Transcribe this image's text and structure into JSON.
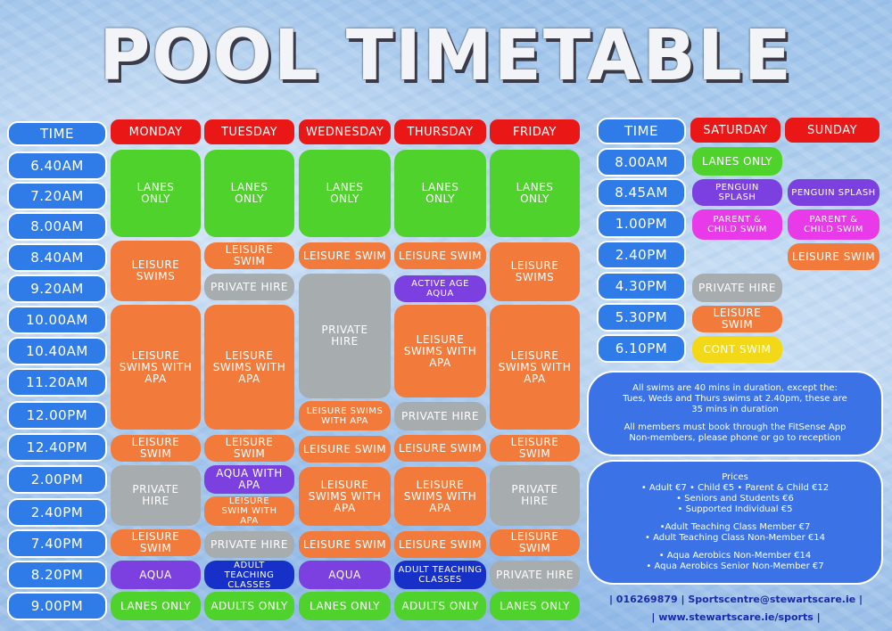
{
  "title": "POOL TIMETABLE",
  "weekday": {
    "time_header": "TIME",
    "days": [
      "MONDAY",
      "TUESDAY",
      "WEDNESDAY",
      "THURSDAY",
      "FRIDAY"
    ],
    "times": [
      "6.40AM",
      "7.20AM",
      "8.00AM",
      "8.40AM",
      "9.20AM",
      "10.00AM",
      "10.40AM",
      "11.20AM",
      "12.00PM",
      "12.40PM",
      "2.00PM",
      "2.40PM",
      "7.40PM",
      "8.20PM",
      "9.00PM"
    ],
    "monday": [
      "LANES ONLY",
      "LEISURE SWIMS",
      "LEISURE SWIMS WITH APA",
      "LEISURE SWIM",
      "PRIVATE HIRE",
      "LEISURE SWIM",
      "AQUA",
      "LANES ONLY"
    ],
    "tuesday": [
      "LANES ONLY",
      "LEISURE SWIM",
      "PRIVATE HIRE",
      "LEISURE SWIMS WITH APA",
      "LEISURE SWIM",
      "AQUA WITH APA",
      "LEISURE SWIM WITH APA",
      "PRIVATE HIRE",
      "ADULT TEACHING CLASSES",
      "ADULTS ONLY"
    ],
    "wednesday": [
      "LANES ONLY",
      "LEISURE SWIM",
      "PRIVATE HIRE",
      "LEISURE SWIMS WITH APA",
      "LEISURE SWIM",
      "LEISURE SWIMS WITH APA",
      "LEISURE SWIM",
      "AQUA",
      "LANES ONLY"
    ],
    "thursday": [
      "LANES ONLY",
      "LEISURE SWIM",
      "ACTIVE AGE AQUA",
      "LEISURE SWIMS WITH APA",
      "PRIVATE HIRE",
      "LEISURE SWIM",
      "LEISURE SWIMS WITH APA",
      "LEISURE SWIM",
      "ADULT TEACHING CLASSES",
      "ADULTS ONLY"
    ],
    "friday": [
      "LANES ONLY",
      "LEISURE SWIMS",
      "LEISURE SWIMS WITH APA",
      "LEISURE SWIM",
      "PRIVATE HIRE",
      "LEISURE SWIM",
      "PRIVATE HIRE",
      "LANES ONLY"
    ]
  },
  "weekend": {
    "time_header": "TIME",
    "days": [
      "SATURDAY",
      "SUNDAY"
    ],
    "times": [
      "8.00AM",
      "8.45AM",
      "1.00PM",
      "2.40PM",
      "4.30PM",
      "5.30PM",
      "6.10PM"
    ],
    "saturday": [
      "LANES ONLY",
      "PENGUIN SPLASH",
      "PARENT & CHILD SWIM",
      "PRIVATE HIRE",
      "LEISURE SWIM",
      "CONT SWIM"
    ],
    "sunday": [
      "PENGUIN SPLASH",
      "PARENT & CHILD SWIM",
      "LEISURE SWIM"
    ]
  },
  "info": {
    "lines": [
      "All swims are 40 mins in duration, except the:",
      "Tues, Weds and Thurs swims at 2.40pm, these are",
      "35 mins in duration",
      "All members must book through the FitSense App",
      "Non-members, please phone or go to reception"
    ]
  },
  "prices": {
    "heading": "Prices",
    "lines": [
      "• Adult €7 • Child €5 • Parent & Child €12",
      "• Seniors and Students €6",
      "• Supported Individual  €5",
      "•Adult Teaching Class Member €7",
      "• Adult Teaching Class Non-Member €14",
      "• Aqua Aerobics Non-Member €14",
      "• Aqua Aerobics Senior Non-Member €7"
    ]
  },
  "contact": {
    "line1": "| 016269879 | Sportscentre@stewartscare.ie |",
    "line2": "| www.stewartscare.ie/sports |"
  },
  "colors": {
    "lanes": "#4fd32c",
    "leisure": "#f27a3a",
    "private_hire": "#a7acae",
    "aqua": "#7c3fe0",
    "adult_teaching": "#1731c8",
    "parent_child": "#e83ae8",
    "cont_swim": "#f3d818",
    "day_header": "#ea1717",
    "time": "#2f7be8"
  }
}
